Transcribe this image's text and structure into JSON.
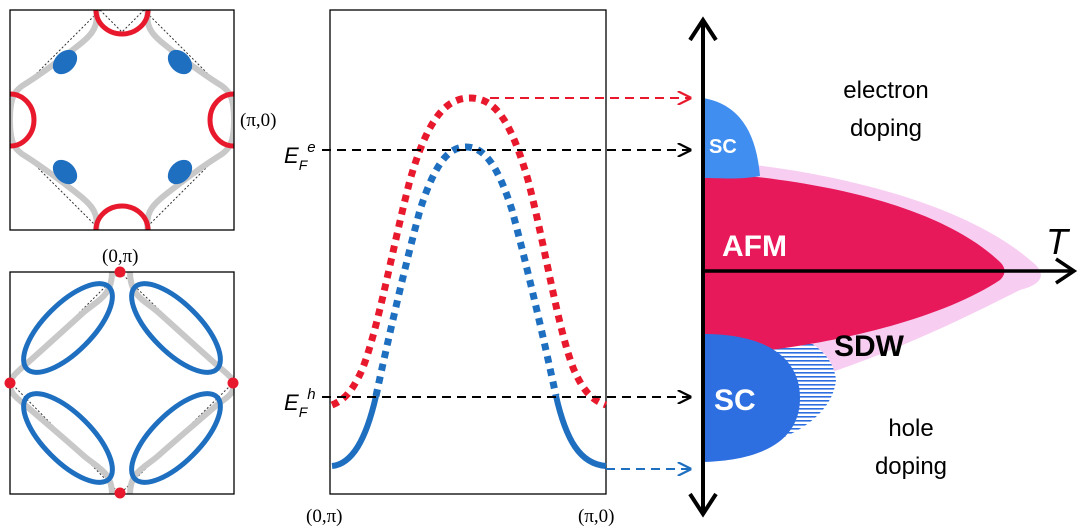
{
  "colors": {
    "red": "#e8192c",
    "blue": "#1f6fc0",
    "gray": "#c8c8c8",
    "magenta": "#e8195a",
    "pink_light": "#f6c6ee",
    "sc_blue": "#2d6fe0",
    "sc_top": "#3f8ef0"
  },
  "left_panels": {
    "top_label": "(π,0)",
    "bottom_label": "(0,π)"
  },
  "middle_panel": {
    "ef_e_base": "E",
    "ef_e_sub": "F",
    "ef_e_sup": "e",
    "ef_h_base": "E",
    "ef_h_sub": "F",
    "ef_h_sup": "h",
    "x_left": "(0,π)",
    "x_right": "(π,0)"
  },
  "phase_diagram": {
    "axis_label": "T",
    "electron_doping_line1": "electron",
    "electron_doping_line2": "doping",
    "hole_doping_line1": "hole",
    "hole_doping_line2": "doping",
    "afm": "AFM",
    "sdw": "SDW",
    "sc_top": "SC",
    "sc_bottom": "SC"
  }
}
